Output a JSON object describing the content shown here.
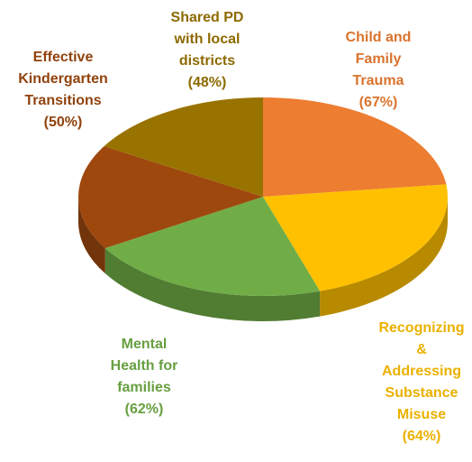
{
  "chart_data": {
    "type": "pie",
    "categories": [
      "Child and\nFamily\nTrauma",
      "Recognizing\n&\nAddressing\nSubstance\nMisuse",
      "Mental\nHealth for\nfamilies",
      "Effective\nKindergarten\nTransitions",
      "Shared PD\nwith local\ndistricts"
    ],
    "values": [
      67,
      64,
      62,
      50,
      48
    ],
    "value_labels": [
      "(67%)",
      "(64%)",
      "(62%)",
      "(50%)",
      "(48%)"
    ],
    "colors": [
      "#ED7D31",
      "#FFC000",
      "#70AD47",
      "#9E480E",
      "#997300"
    ]
  }
}
